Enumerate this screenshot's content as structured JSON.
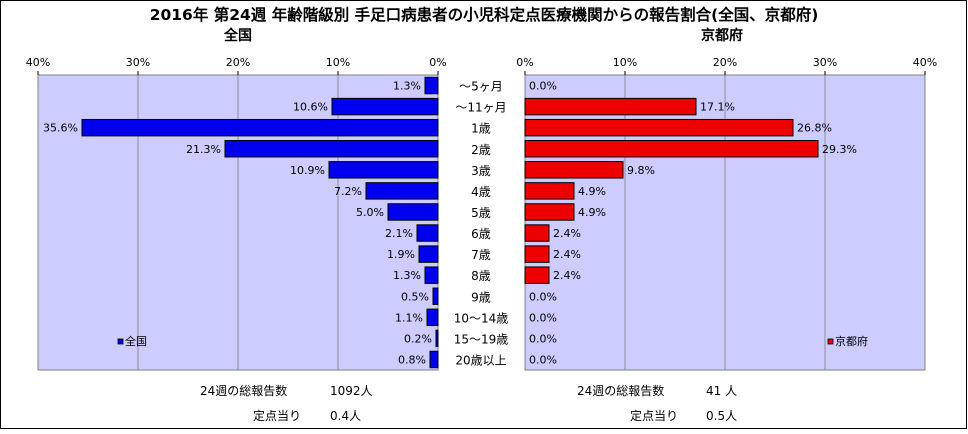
{
  "title": "2016年 第24週 年齢階級別 手足口病患者の小児科定点医療機関からの報告割合(全国、京都府)",
  "chart_data": [
    {
      "type": "bar",
      "orientation": "horizontal",
      "title": "全国",
      "x_direction": "reversed",
      "xlim": [
        0,
        40
      ],
      "ticks": [
        "0%",
        "10%",
        "20%",
        "30%",
        "40%"
      ],
      "grid": true,
      "legend": "bottom-left",
      "bar_color": "#0000ee",
      "plot_bg": "#ccccff",
      "categories": [
        "～5ヶ月",
        "～11ヶ月",
        "1歳",
        "2歳",
        "3歳",
        "4歳",
        "5歳",
        "6歳",
        "7歳",
        "8歳",
        "9歳",
        "10～14歳",
        "15～19歳",
        "20歳以上"
      ],
      "series": [
        {
          "name": "全国",
          "values": [
            1.3,
            10.6,
            35.6,
            21.3,
            10.9,
            7.2,
            5.0,
            2.1,
            1.9,
            1.3,
            0.5,
            1.1,
            0.2,
            0.8
          ],
          "labels": [
            "1.3%",
            "10.6%",
            "35.6%",
            "21.3%",
            "10.9%",
            "7.2%",
            "5.0%",
            "2.1%",
            "1.9%",
            "1.3%",
            "0.5%",
            "1.1%",
            "0.2%",
            "0.8%"
          ]
        }
      ]
    },
    {
      "type": "bar",
      "orientation": "horizontal",
      "title": "京都府",
      "x_direction": "normal",
      "xlim": [
        0,
        40
      ],
      "ticks": [
        "0%",
        "10%",
        "20%",
        "30%",
        "40%"
      ],
      "grid": true,
      "legend": "bottom-right",
      "bar_color": "#ee0000",
      "plot_bg": "#ccccff",
      "categories": [
        "～5ヶ月",
        "～11ヶ月",
        "1歳",
        "2歳",
        "3歳",
        "4歳",
        "5歳",
        "6歳",
        "7歳",
        "8歳",
        "9歳",
        "10～14歳",
        "15～19歳",
        "20歳以上"
      ],
      "series": [
        {
          "name": "京都府",
          "values": [
            0.0,
            17.1,
            26.8,
            29.3,
            9.8,
            4.9,
            4.9,
            2.4,
            2.4,
            2.4,
            0.0,
            0.0,
            0.0,
            0.0
          ],
          "labels": [
            "0.0%",
            "17.1%",
            "26.8%",
            "29.3%",
            "9.8%",
            "4.9%",
            "4.9%",
            "2.4%",
            "2.4%",
            "2.4%",
            "0.0%",
            "0.0%",
            "0.0%",
            "0.0%"
          ]
        }
      ]
    }
  ],
  "footer": {
    "national_total_label": "24週の総報告数",
    "national_total_value": "1092人",
    "national_per_label": "定点当り",
    "national_per_value": "0.4人",
    "kyoto_total_label": "24週の総報告数",
    "kyoto_total_value": "41 人",
    "kyoto_per_label": "定点当り",
    "kyoto_per_value": "0.5人"
  }
}
